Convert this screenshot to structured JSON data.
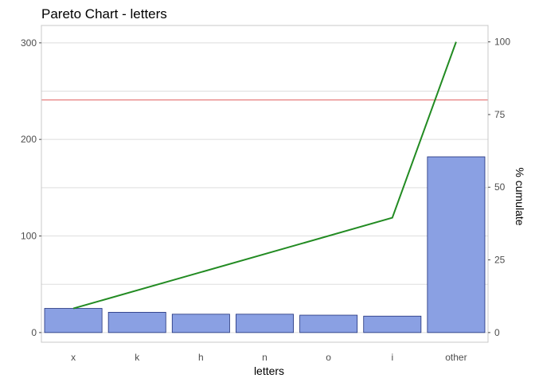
{
  "chart_data": {
    "type": "bar",
    "title": "Pareto Chart - letters",
    "xlabel": "letters",
    "ylabel": "",
    "y2label": "% cumulate",
    "categories": [
      "x",
      "k",
      "h",
      "n",
      "o",
      "i",
      "other"
    ],
    "values": [
      25,
      21,
      19,
      19,
      18,
      17,
      182
    ],
    "ylim": [
      -10,
      318
    ],
    "yticks": [
      0,
      100,
      200,
      300
    ],
    "y2ticks": [
      0,
      25,
      50,
      75,
      100
    ],
    "y2_max_value": 301,
    "cumulative_percent": [
      8.3,
      15.3,
      21.6,
      27.9,
      33.9,
      39.5,
      100
    ],
    "threshold_percent": 80,
    "grid": true,
    "colors": {
      "bar_fill": "#8aa0e3",
      "bar_stroke": "#1f2f7a",
      "cumulative_line": "#228b22",
      "threshold_line": "#e06060"
    }
  }
}
